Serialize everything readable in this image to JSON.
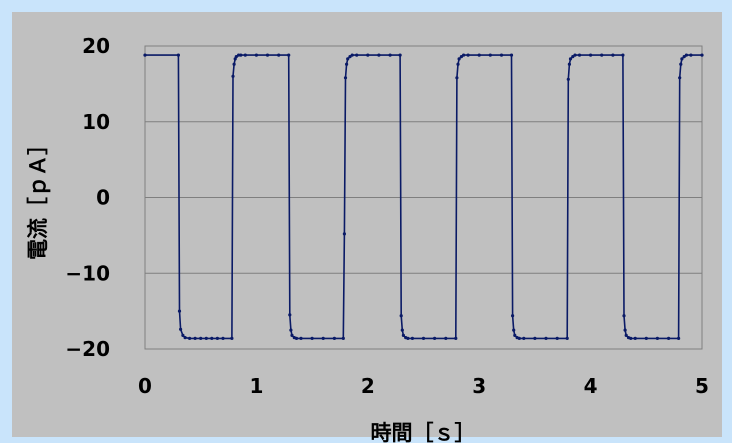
{
  "chart_data": {
    "type": "line",
    "title": "",
    "xlabel": "時間［ｓ］",
    "ylabel": "電流［ｐＡ］",
    "xlim": [
      0,
      5
    ],
    "ylim": [
      -20,
      20
    ],
    "xticks": [
      0,
      1,
      2,
      3,
      4,
      5
    ],
    "yticks": [
      -20,
      -10,
      0,
      10,
      20
    ],
    "x_tick_labels": [
      "0",
      "1",
      "2",
      "3",
      "4",
      "5"
    ],
    "y_tick_labels": [
      "−20",
      "−10",
      "0",
      "10",
      "20"
    ],
    "grid": true,
    "legend": "none",
    "series": [
      {
        "color": "#0a1a66",
        "x": [
          0,
          0.3,
          0.31,
          0.32,
          0.34,
          0.36,
          0.4,
          0.45,
          0.5,
          0.55,
          0.6,
          0.65,
          0.7,
          0.78,
          0.79,
          0.8,
          0.81,
          0.82,
          0.84,
          0.86,
          0.9,
          1.0,
          1.1,
          1.2,
          1.29,
          1.3,
          1.31,
          1.32,
          1.34,
          1.36,
          1.4,
          1.5,
          1.6,
          1.7,
          1.78,
          1.79,
          1.8,
          1.81,
          1.82,
          1.84,
          1.86,
          1.9,
          2.0,
          2.1,
          2.2,
          2.29,
          2.3,
          2.31,
          2.32,
          2.34,
          2.36,
          2.4,
          2.5,
          2.6,
          2.7,
          2.79,
          2.8,
          2.81,
          2.82,
          2.84,
          2.86,
          2.9,
          3.0,
          3.1,
          3.2,
          3.29,
          3.3,
          3.31,
          3.32,
          3.34,
          3.36,
          3.4,
          3.5,
          3.6,
          3.7,
          3.79,
          3.8,
          3.81,
          3.82,
          3.84,
          3.86,
          3.9,
          4.0,
          4.1,
          4.2,
          4.29,
          4.3,
          4.31,
          4.32,
          4.34,
          4.36,
          4.4,
          4.5,
          4.6,
          4.7,
          4.79,
          4.8,
          4.81,
          4.82,
          4.84,
          4.86,
          4.9,
          5.0
        ],
        "y": [
          18.8,
          18.8,
          -15.0,
          -17.4,
          -18.2,
          -18.5,
          -18.6,
          -18.6,
          -18.6,
          -18.6,
          -18.6,
          -18.6,
          -18.6,
          -18.6,
          16.0,
          17.6,
          18.3,
          18.6,
          18.8,
          18.8,
          18.8,
          18.8,
          18.8,
          18.8,
          18.8,
          -15.5,
          -17.5,
          -18.2,
          -18.5,
          -18.6,
          -18.6,
          -18.6,
          -18.6,
          -18.6,
          -18.6,
          -4.8,
          15.8,
          17.6,
          18.3,
          18.6,
          18.8,
          18.8,
          18.8,
          18.8,
          18.8,
          18.8,
          -15.6,
          -17.5,
          -18.2,
          -18.5,
          -18.6,
          -18.6,
          -18.6,
          -18.6,
          -18.6,
          -18.6,
          15.8,
          17.6,
          18.3,
          18.6,
          18.8,
          18.8,
          18.8,
          18.8,
          18.8,
          18.8,
          -15.6,
          -17.5,
          -18.2,
          -18.5,
          -18.6,
          -18.6,
          -18.6,
          -18.6,
          -18.6,
          -18.6,
          15.6,
          17.6,
          18.3,
          18.6,
          18.8,
          18.8,
          18.8,
          18.8,
          18.8,
          18.8,
          -15.6,
          -17.5,
          -18.2,
          -18.5,
          -18.6,
          -18.6,
          -18.6,
          -18.6,
          -18.6,
          -18.6,
          15.8,
          17.6,
          18.3,
          18.6,
          18.8,
          18.8,
          18.8
        ]
      }
    ]
  },
  "colors": {
    "page_background": "#c9e4fb",
    "plot_background": "#c0c0c0",
    "grid": "#7f7f7f",
    "line": "#0a1a66"
  }
}
